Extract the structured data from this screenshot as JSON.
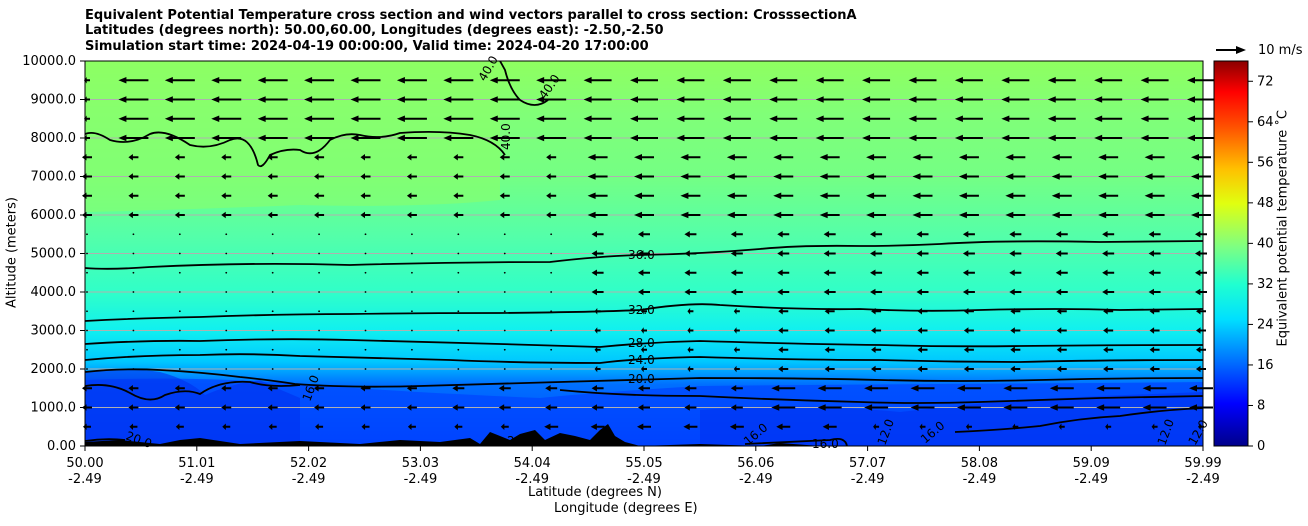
{
  "chart_data": {
    "type": "contourf",
    "title_lines": [
      "Equivalent Potential Temperature cross section and wind vectors parallel to cross section: CrosssectionA",
      "Latitudes (degrees north): 50.00,60.00, Longitudes (degrees east): -2.50,-2.50",
      "Simulation start time: 2024-04-19 00:00:00, Valid time: 2024-04-20 17:00:00"
    ],
    "ylabel": "Altitude (meters)",
    "xlabel_lines": [
      "Latitude (degrees N)",
      "Longitude (degrees E)"
    ],
    "ylim": [
      0,
      10000
    ],
    "yticks": [
      "0.00",
      "1000.0",
      "2000.0",
      "3000.0",
      "4000.0",
      "5000.0",
      "6000.0",
      "7000.0",
      "8000.0",
      "9000.0",
      "10000.0"
    ],
    "xticks": [
      {
        "lat": "50.00",
        "lon": "-2.49"
      },
      {
        "lat": "51.01",
        "lon": "-2.49"
      },
      {
        "lat": "52.02",
        "lon": "-2.49"
      },
      {
        "lat": "53.03",
        "lon": "-2.49"
      },
      {
        "lat": "54.04",
        "lon": "-2.49"
      },
      {
        "lat": "55.05",
        "lon": "-2.49"
      },
      {
        "lat": "56.06",
        "lon": "-2.49"
      },
      {
        "lat": "57.07",
        "lon": "-2.49"
      },
      {
        "lat": "58.08",
        "lon": "-2.49"
      },
      {
        "lat": "59.09",
        "lon": "-2.49"
      },
      {
        "lat": "59.99",
        "lon": "-2.49"
      }
    ],
    "colorbar": {
      "label": "Equivalent potential temperature $^\\circ$C",
      "label_display": "Equivalent potential temperature ˚C",
      "range": [
        0,
        76
      ],
      "ticks": [
        0,
        8,
        16,
        24,
        32,
        40,
        48,
        56,
        64,
        72
      ]
    },
    "quiver_key": "10 m/s",
    "contour_lines": [
      {
        "level": 36,
        "label": "36.0",
        "altitude_m": [
          4600,
          4650,
          4750,
          4800,
          4900,
          5000,
          5100,
          5200,
          5300
        ]
      },
      {
        "level": 32,
        "label": "32.0",
        "altitude_m": [
          3200,
          3300,
          3400,
          3450,
          3500,
          3600,
          3550,
          3550,
          3550
        ]
      },
      {
        "level": 28,
        "label": "28.0",
        "altitude_m": [
          2650,
          2750,
          2750,
          2700,
          2600,
          2700,
          2650,
          2600,
          2650
        ]
      },
      {
        "level": 24,
        "label": "24.0",
        "altitude_m": [
          2250,
          2400,
          2350,
          2250,
          2150,
          2250,
          2200,
          2200,
          2250
        ]
      },
      {
        "level": 20,
        "label": "20.0",
        "altitude_m": [
          1850,
          1950,
          1900,
          1850,
          1800,
          1850,
          1850,
          1800,
          1950
        ]
      },
      {
        "level": 40,
        "label": "40.0",
        "altitude_m": [
          8050,
          7800,
          8100,
          7500,
          9900
        ]
      }
    ],
    "inline_labels": [
      "40.0",
      "40.0",
      "40.0",
      "36.0",
      "32.0",
      "28.0",
      "24.0",
      "20.0",
      "16.0",
      "20.0",
      "20.0",
      "16.0",
      "16.0",
      "12.0",
      "16.0",
      "12.0",
      "12.0"
    ],
    "wind": {
      "upper_levels_m": [
        10000,
        9500,
        9000,
        8500,
        8000,
        7500,
        7000,
        6500,
        6000
      ],
      "direction": "toward lower latitude",
      "upper_speed_ms": 8
    }
  }
}
